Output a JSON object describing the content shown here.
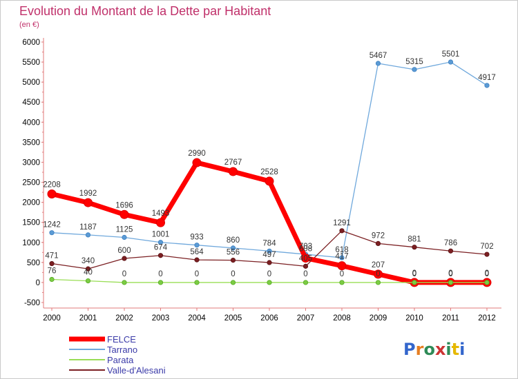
{
  "title": "Evolution du Montant de la Dette par Habitant",
  "subtitle": "(en €)",
  "logo_text": "Proxiti",
  "chart_data": {
    "type": "line",
    "title": "Evolution du Montant de la Dette par Habitant",
    "subtitle": "(en €)",
    "categories": [
      "2000",
      "2001",
      "2002",
      "2003",
      "2004",
      "2005",
      "2006",
      "2007",
      "2008",
      "2009",
      "2010",
      "2011",
      "2012"
    ],
    "ylim": [
      -500,
      6000
    ],
    "yticks": [
      -500,
      0,
      500,
      1000,
      1500,
      2000,
      2500,
      3000,
      3500,
      4000,
      4500,
      5000,
      5500,
      6000
    ],
    "grid": false,
    "legend_position": "bottom-left",
    "series": [
      {
        "name": "FELCE",
        "color": "#ff0000",
        "values": [
          2208,
          1992,
          1696,
          1493,
          2990,
          2767,
          2528,
          608,
          417,
          207,
          0,
          0,
          0
        ]
      },
      {
        "name": "Tarrano",
        "color": "#6fa8dc",
        "values": [
          1242,
          1187,
          1125,
          1001,
          933,
          860,
          784,
          703,
          618,
          5467,
          5315,
          5501,
          4917
        ]
      },
      {
        "name": "Parata",
        "color": "#99dd55",
        "values": [
          76,
          40,
          0,
          0,
          0,
          0,
          0,
          0,
          0,
          0,
          0,
          0,
          0
        ]
      },
      {
        "name": "Valle-d'Alesani",
        "color": "#7b1f22",
        "values": [
          471,
          340,
          600,
          674,
          564,
          556,
          497,
          405,
          1291,
          972,
          881,
          786,
          702
        ]
      }
    ]
  }
}
